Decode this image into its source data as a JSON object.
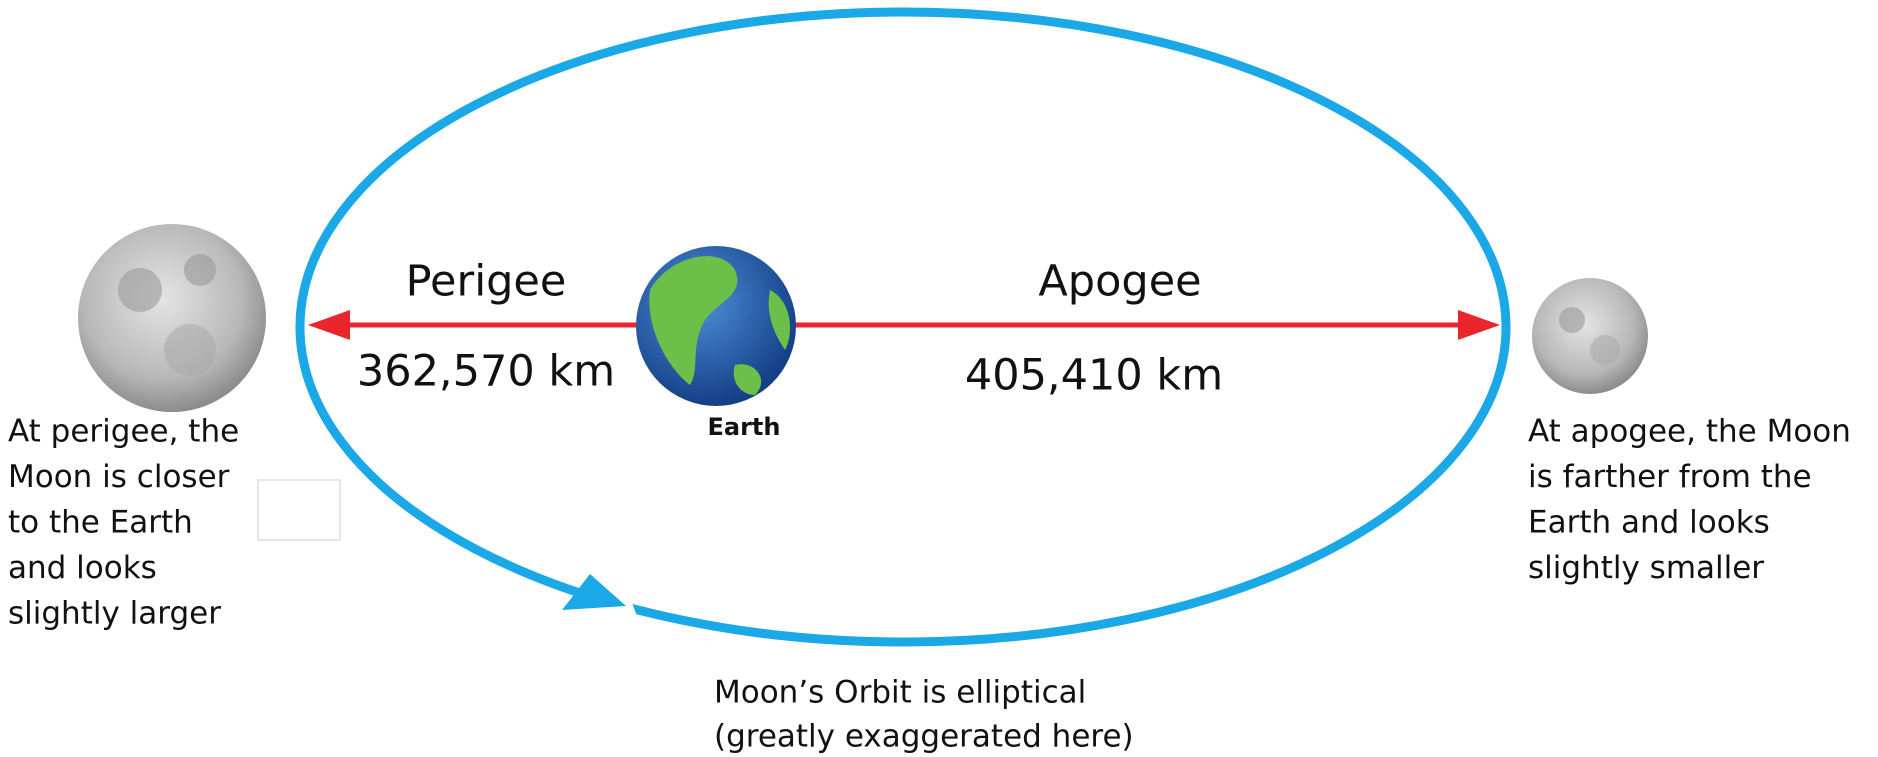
{
  "perigee": {
    "label": "Perigee",
    "distance": "362,570 km"
  },
  "apogee": {
    "label": "Apogee",
    "distance": "405,410 km"
  },
  "earth_label": "Earth",
  "perigee_note": [
    "At perigee, the",
    "Moon is closer",
    "to the Earth",
    "and looks",
    "slightly larger"
  ],
  "apogee_note": [
    "At apogee, the Moon",
    "is farther from the",
    "Earth and looks",
    "slightly smaller"
  ],
  "orbit_caption": [
    "Moon’s Orbit is elliptical",
    "(greatly exaggerated here)"
  ]
}
